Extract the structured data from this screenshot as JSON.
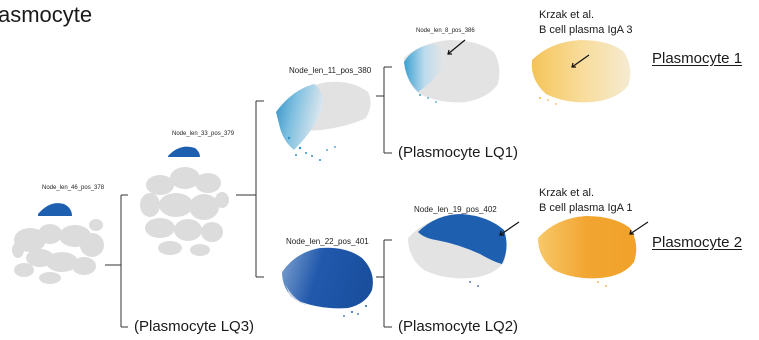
{
  "title": "asmocyte",
  "colors": {
    "blue": "#1f5fb0",
    "lightblue": "#3a9fd0",
    "orange": "#f2a531",
    "lightorange": "#f6cc74",
    "grey": "#dcdcdc",
    "line": "#333333"
  },
  "nodes": {
    "root": "Node_len_46_pos_378",
    "n33": "Node_len_33_pos_379",
    "n11": "Node_len_11_pos_380",
    "n22": "Node_len_22_pos_401",
    "n8": "Node_len_8_pos_386",
    "n19": "Node_len_19_pos_402"
  },
  "leaf_labels": {
    "lq1": "(Plasmocyte LQ1)",
    "lq2": "(Plasmocyte LQ2)",
    "lq3": "(Plasmocyte LQ3)"
  },
  "references": {
    "ref1_line1": "Krzak et al.",
    "ref1_line2": "B cell plasma IgA 3",
    "ref2_line1": "Krzak et al.",
    "ref2_line2": "B cell plasma IgA 1"
  },
  "outcomes": {
    "p1": "Plasmocyte 1",
    "p2": "Plasmocyte 2"
  }
}
